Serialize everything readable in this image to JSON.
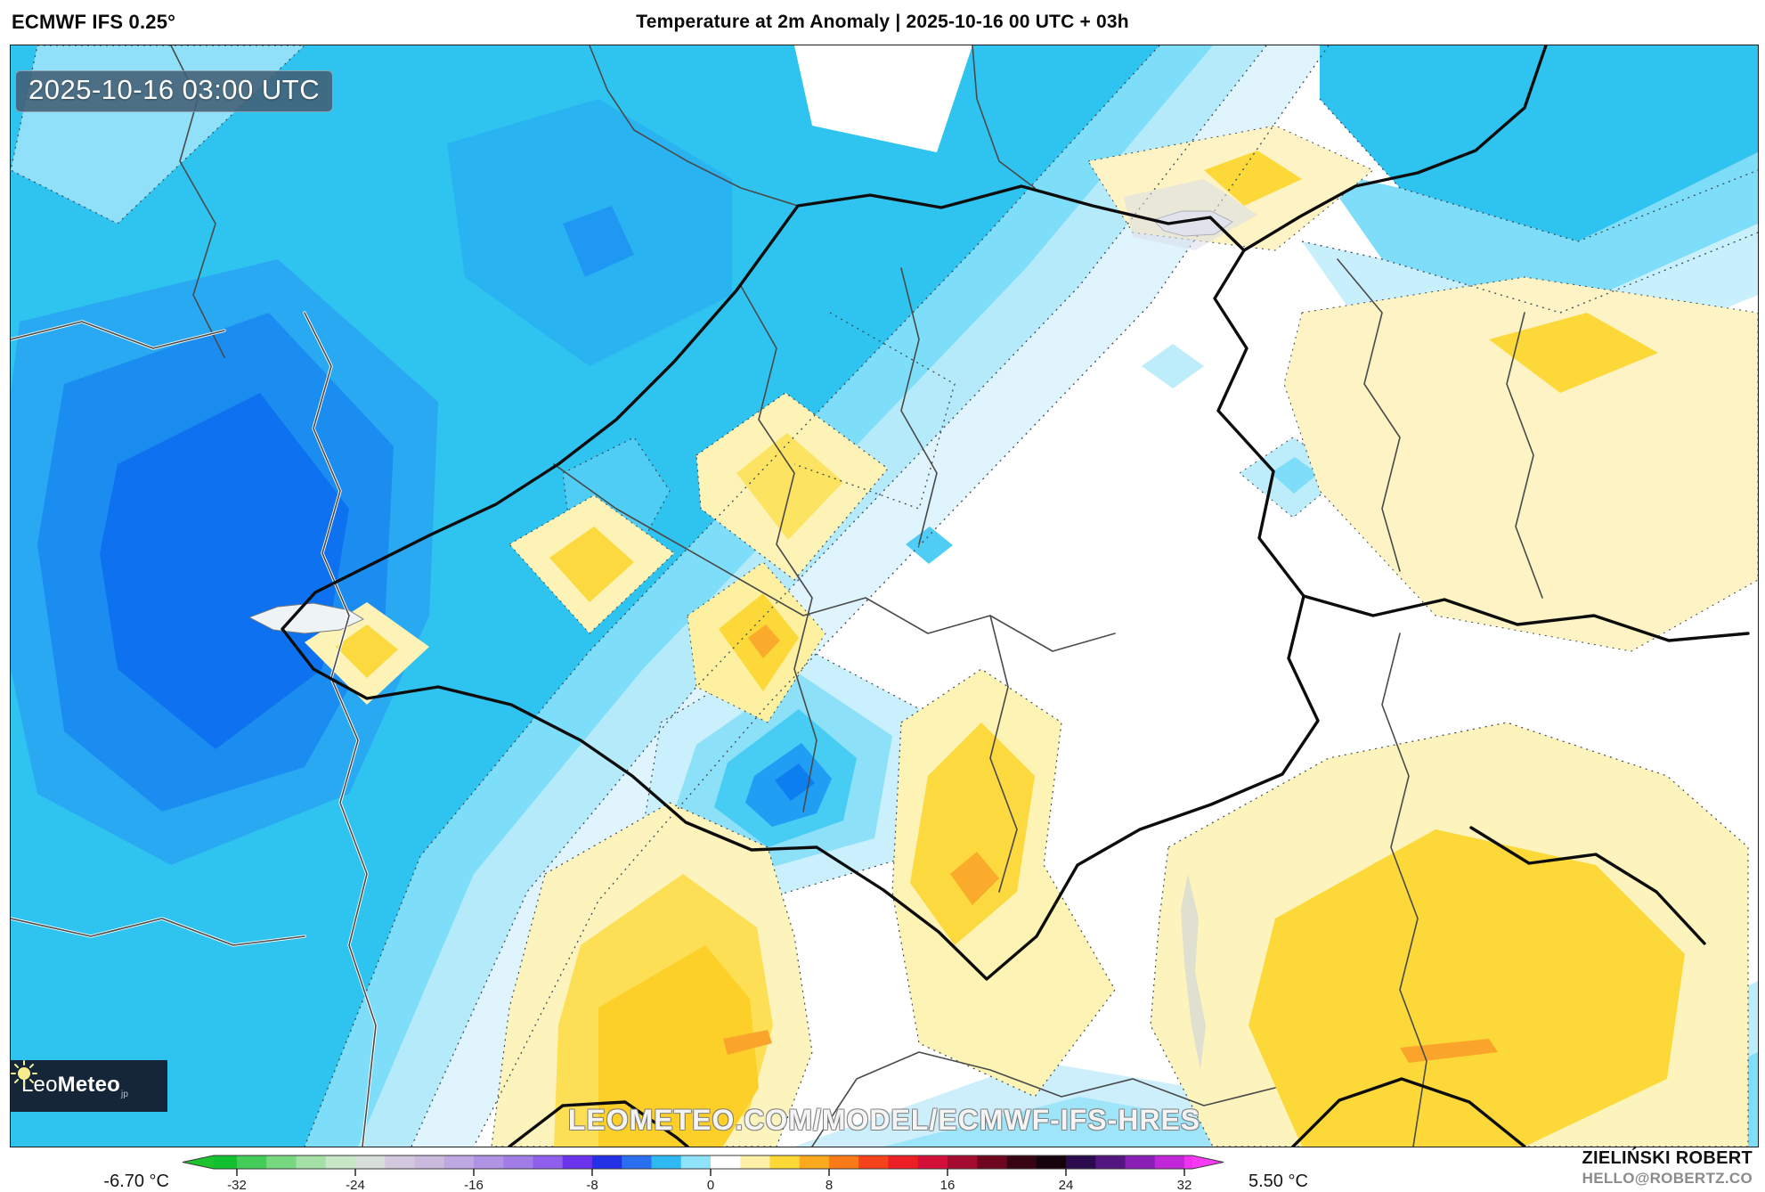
{
  "header": {
    "model_label": "ECMWF IFS 0.25°",
    "title": "Temperature at 2m Anomaly | 2025-10-16 00 UTC + 03h"
  },
  "map": {
    "timestamp": "2025-10-16 03:00 UTC",
    "watermark": "LEOMETEO.COM/MODEL/ECMWF-IFS-HRES",
    "logo": {
      "brand_prefix": "Leo",
      "brand_suffix": "Meteo",
      "brand_tld": "jp",
      "icon": "sun-icon"
    }
  },
  "palette": {
    "cyan": "#2fc3f0",
    "light_cyan": "#7eddf8",
    "pale_cyan": "#b5eafb",
    "near_white_cyan": "#dff4fd",
    "blue": "#1b8df1",
    "deep_blue": "#0e72f0",
    "pale_yellow": "#fdf3c4",
    "yellow": "#fce361",
    "gold": "#fcd938",
    "orange": "#fbab2c",
    "badge_bg": "#435f74",
    "logo_bg": "#142638"
  },
  "colorbar": {
    "unit": "°C",
    "min_label": "-6.70 °C",
    "max_label": "5.50 °C",
    "tick_values": [
      -32,
      -24,
      -16,
      -8,
      0,
      8,
      16,
      24,
      32
    ],
    "tick_labels": [
      "-32",
      "-24",
      "-16",
      "-8",
      "0",
      "8",
      "16",
      "24",
      "32"
    ],
    "value_range": [
      -34,
      34
    ],
    "left_arrow_color": "#1dc32f",
    "right_arrow_color": "#f83af2",
    "segments": [
      {
        "from": -34,
        "to": -32,
        "color": "#12c12f"
      },
      {
        "from": -32,
        "to": -30,
        "color": "#43cd58"
      },
      {
        "from": -30,
        "to": -28,
        "color": "#78d87f"
      },
      {
        "from": -28,
        "to": -26,
        "color": "#a5e0a7"
      },
      {
        "from": -26,
        "to": -24,
        "color": "#c7e7c7"
      },
      {
        "from": -24,
        "to": -22,
        "color": "#d8ded8"
      },
      {
        "from": -22,
        "to": -20,
        "color": "#d2c9de"
      },
      {
        "from": -20,
        "to": -18,
        "color": "#cabade"
      },
      {
        "from": -18,
        "to": -16,
        "color": "#bfa8e1"
      },
      {
        "from": -16,
        "to": -14,
        "color": "#b093e4"
      },
      {
        "from": -14,
        "to": -12,
        "color": "#a17ce7"
      },
      {
        "from": -12,
        "to": -10,
        "color": "#8f5eea"
      },
      {
        "from": -10,
        "to": -8,
        "color": "#6c33ec"
      },
      {
        "from": -8,
        "to": -6,
        "color": "#2430e6"
      },
      {
        "from": -6,
        "to": -4,
        "color": "#2b6ff1"
      },
      {
        "from": -4,
        "to": -2,
        "color": "#2fb9f3"
      },
      {
        "from": -2,
        "to": 0,
        "color": "#8fe3f9"
      },
      {
        "from": 0,
        "to": 2,
        "color": "#ffffff"
      },
      {
        "from": 2,
        "to": 4,
        "color": "#fdf0a6"
      },
      {
        "from": 4,
        "to": 6,
        "color": "#fcd937"
      },
      {
        "from": 6,
        "to": 8,
        "color": "#fbaa1f"
      },
      {
        "from": 8,
        "to": 10,
        "color": "#f97a16"
      },
      {
        "from": 10,
        "to": 12,
        "color": "#f6421b"
      },
      {
        "from": 12,
        "to": 14,
        "color": "#ec1f24"
      },
      {
        "from": 14,
        "to": 16,
        "color": "#d40f3a"
      },
      {
        "from": 16,
        "to": 18,
        "color": "#a50b2e"
      },
      {
        "from": 18,
        "to": 20,
        "color": "#6f0620"
      },
      {
        "from": 20,
        "to": 22,
        "color": "#380414"
      },
      {
        "from": 22,
        "to": 24,
        "color": "#15020d"
      },
      {
        "from": 24,
        "to": 26,
        "color": "#2b0a4e"
      },
      {
        "from": 26,
        "to": 28,
        "color": "#531680"
      },
      {
        "from": 28,
        "to": 30,
        "color": "#8a1fb5"
      },
      {
        "from": 30,
        "to": 32,
        "color": "#c127d8"
      },
      {
        "from": 32,
        "to": 34,
        "color": "#ee32ee"
      }
    ]
  },
  "footer": {
    "credit_name": "ZIELIŃSKI ROBERT",
    "credit_email": "HELLO@ROBERTZ.CO"
  }
}
